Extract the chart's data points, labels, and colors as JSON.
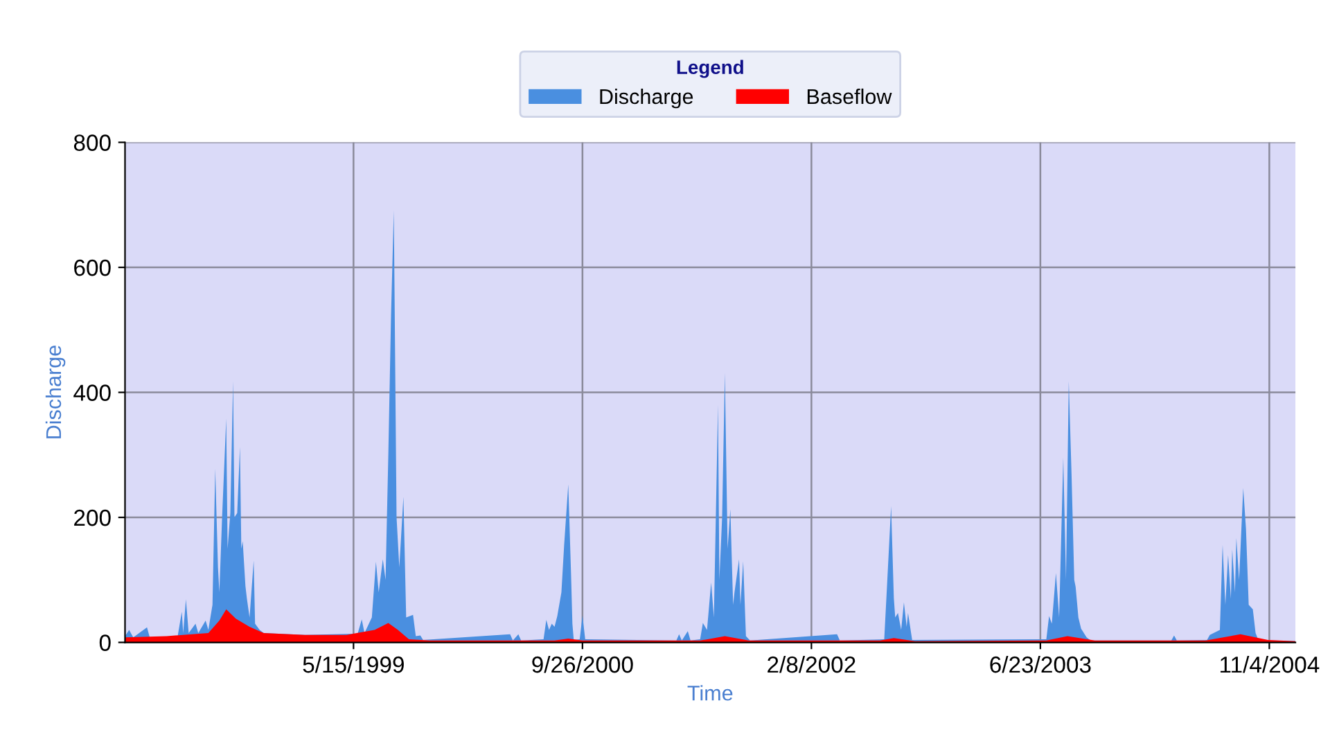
{
  "chart_data": {
    "type": "area",
    "xlabel": "Time",
    "ylabel": "Discharge",
    "legend_title": "Legend",
    "legend": "top",
    "grid": true,
    "xlim": [
      "1998-01-01",
      "2004-12-31"
    ],
    "ylim": [
      0,
      800
    ],
    "yticks": [
      0,
      200,
      400,
      600,
      800
    ],
    "xticks": [
      {
        "value": "1999-05-15",
        "label": "5/15/1999"
      },
      {
        "value": "2000-09-26",
        "label": "9/26/2000"
      },
      {
        "value": "2002-02-08",
        "label": "2/8/2002"
      },
      {
        "value": "2003-06-23",
        "label": "6/23/2003"
      },
      {
        "value": "2004-11-04",
        "label": "11/4/2004"
      }
    ],
    "series": [
      {
        "name": "Discharge",
        "color": "#4a8fe0",
        "x": [
          "1998-01-01",
          "1998-01-10",
          "1998-01-19",
          "1998-02-18",
          "1998-02-24",
          "1998-04-26",
          "1998-05-05",
          "1998-05-08",
          "1998-05-14",
          "1998-05-20",
          "1998-06-04",
          "1998-06-10",
          "1998-06-26",
          "1998-07-02",
          "1998-07-11",
          "1998-07-17",
          "1998-07-23",
          "1998-07-26",
          "1998-08-01",
          "1998-08-10",
          "1998-08-13",
          "1998-08-19",
          "1998-08-25",
          "1998-08-28",
          "1998-09-03",
          "1998-09-09",
          "1998-09-12",
          "1998-09-15",
          "1998-09-21",
          "1998-09-24",
          "1998-09-30",
          "1998-10-09",
          "1998-10-12",
          "1998-10-22",
          "1998-10-31",
          "1999-01-29",
          "1999-05-24",
          "1999-06-02",
          "1999-06-08",
          "1999-06-24",
          "1999-07-03",
          "1999-07-09",
          "1999-07-18",
          "1999-07-24",
          "1999-07-30",
          "1999-08-05",
          "1999-08-11",
          "1999-08-17",
          "1999-08-23",
          "1999-09-01",
          "1999-09-07",
          "1999-09-22",
          "1999-09-28",
          "1999-10-08",
          "1999-10-14",
          "2000-04-21",
          "2000-04-27",
          "2000-05-09",
          "2000-05-15",
          "2000-07-03",
          "2000-07-09",
          "2000-07-15",
          "2000-07-21",
          "2000-07-27",
          "2000-08-02",
          "2000-08-11",
          "2000-08-17",
          "2000-08-26",
          "2000-09-01",
          "2000-09-04",
          "2000-09-07",
          "2000-09-20",
          "2000-09-26",
          "2000-10-02",
          "2001-04-19",
          "2001-04-25",
          "2001-05-01",
          "2001-05-14",
          "2001-05-20",
          "2001-06-10",
          "2001-06-16",
          "2001-06-25",
          "2001-07-04",
          "2001-07-10",
          "2001-07-19",
          "2001-07-22",
          "2001-07-28",
          "2001-08-03",
          "2001-08-09",
          "2001-08-15",
          "2001-08-21",
          "2001-08-24",
          "2001-09-03",
          "2001-09-06",
          "2001-09-12",
          "2001-09-18",
          "2001-09-27",
          "2002-04-05",
          "2002-04-11",
          "2002-07-17",
          "2002-07-23",
          "2002-08-01",
          "2002-08-07",
          "2002-08-10",
          "2002-08-16",
          "2002-08-23",
          "2002-08-29",
          "2002-09-04",
          "2002-09-07",
          "2002-09-16",
          "2003-07-06",
          "2003-07-12",
          "2003-07-18",
          "2003-07-27",
          "2003-08-03",
          "2003-08-12",
          "2003-08-18",
          "2003-08-24",
          "2003-08-30",
          "2003-09-05",
          "2003-09-08",
          "2003-09-14",
          "2003-09-20",
          "2003-10-02",
          "2003-10-11",
          "2004-04-04",
          "2004-04-10",
          "2004-04-16",
          "2004-06-21",
          "2004-06-27",
          "2004-07-19",
          "2004-07-25",
          "2004-07-31",
          "2004-08-06",
          "2004-08-12",
          "2004-08-15",
          "2004-08-21",
          "2004-08-24",
          "2004-08-30",
          "2004-09-08",
          "2004-09-14",
          "2004-09-20",
          "2004-09-29",
          "2004-10-05",
          "2004-10-11",
          "2004-12-31"
        ],
        "values": [
          10,
          20,
          8,
          24,
          8,
          10,
          49,
          15,
          69,
          15,
          30,
          15,
          35,
          20,
          60,
          278,
          120,
          80,
          200,
          358,
          150,
          207,
          418,
          200,
          207,
          313,
          150,
          162,
          90,
          71,
          40,
          131,
          30,
          20,
          15,
          12,
          14,
          37,
          15,
          40,
          129,
          80,
          133,
          100,
          300,
          525,
          691,
          200,
          120,
          233,
          40,
          44,
          10,
          11,
          4,
          13,
          3,
          13,
          3,
          5,
          36,
          20,
          30,
          25,
          42,
          80,
          156,
          253,
          111,
          30,
          4,
          5,
          43,
          5,
          3,
          13,
          3,
          18,
          3,
          5,
          31,
          20,
          96,
          40,
          380,
          100,
          200,
          431,
          150,
          213,
          60,
          80,
          133,
          60,
          130,
          10,
          3,
          13,
          3,
          5,
          89,
          218,
          71,
          40,
          47,
          20,
          64,
          25,
          47,
          4,
          5,
          42,
          30,
          111,
          40,
          296,
          100,
          418,
          271,
          100,
          89,
          40,
          22,
          8,
          3,
          3,
          11,
          3,
          4,
          12,
          20,
          156,
          60,
          140,
          70,
          149,
          80,
          167,
          100,
          247,
          182,
          60,
          53,
          15,
          4,
          2
        ]
      },
      {
        "name": "Baseflow",
        "color": "#ff0000",
        "x": [
          "1998-01-01",
          "1998-04-02",
          "1998-07-02",
          "1998-07-26",
          "1998-08-10",
          "1998-08-31",
          "1998-09-30",
          "1998-10-31",
          "1999-01-29",
          "1999-04-30",
          "1999-06-30",
          "1999-07-30",
          "1999-08-20",
          "1999-09-13",
          "1999-10-29",
          "2000-07-27",
          "2000-08-26",
          "2000-09-26",
          "2001-06-10",
          "2001-08-03",
          "2001-09-24",
          "2002-07-08",
          "2002-08-07",
          "2002-09-22",
          "2003-07-06",
          "2003-08-21",
          "2003-10-20",
          "2004-06-18",
          "2004-09-02",
          "2004-11-01",
          "2004-12-31"
        ],
        "values": [
          8,
          10,
          15,
          35,
          53,
          38,
          25,
          15,
          12,
          12,
          20,
          31,
          20,
          5,
          3,
          3,
          6,
          3,
          3,
          10,
          3,
          3,
          7,
          2,
          3,
          10,
          3,
          3,
          13,
          4,
          2
        ]
      }
    ]
  }
}
